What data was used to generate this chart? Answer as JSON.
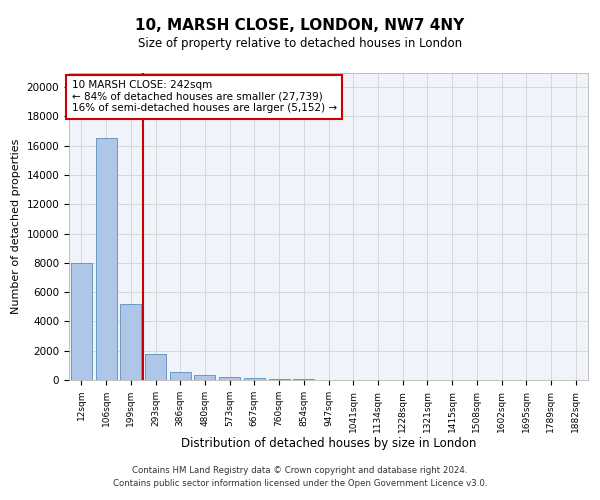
{
  "title": "10, MARSH CLOSE, LONDON, NW7 4NY",
  "subtitle": "Size of property relative to detached houses in London",
  "xlabel": "Distribution of detached houses by size in London",
  "ylabel": "Number of detached properties",
  "bar_labels": [
    "12sqm",
    "106sqm",
    "199sqm",
    "293sqm",
    "386sqm",
    "480sqm",
    "573sqm",
    "667sqm",
    "760sqm",
    "854sqm",
    "947sqm",
    "1041sqm",
    "1134sqm",
    "1228sqm",
    "1321sqm",
    "1415sqm",
    "1508sqm",
    "1602sqm",
    "1695sqm",
    "1789sqm",
    "1882sqm"
  ],
  "bar_values": [
    8000,
    16500,
    5200,
    1800,
    550,
    350,
    200,
    150,
    100,
    50,
    0,
    0,
    0,
    0,
    0,
    0,
    0,
    0,
    0,
    0,
    0
  ],
  "bar_color": "#aec6e8",
  "bar_edge_color": "#5a8fc0",
  "vline_x": 2.5,
  "vline_color": "#cc0000",
  "annotation_text": "10 MARSH CLOSE: 242sqm\n← 84% of detached houses are smaller (27,739)\n16% of semi-detached houses are larger (5,152) →",
  "annotation_box_color": "#cc0000",
  "ylim": [
    0,
    21000
  ],
  "yticks": [
    0,
    2000,
    4000,
    6000,
    8000,
    10000,
    12000,
    14000,
    16000,
    18000,
    20000
  ],
  "grid_color": "#cccccc",
  "bg_color": "#f0f4fa",
  "footer_line1": "Contains HM Land Registry data © Crown copyright and database right 2024.",
  "footer_line2": "Contains public sector information licensed under the Open Government Licence v3.0."
}
